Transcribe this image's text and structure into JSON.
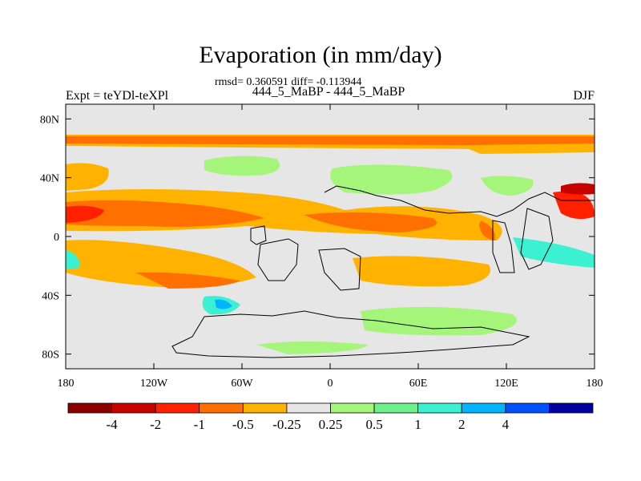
{
  "chart_data": {
    "type": "heatmap",
    "title": "Evaporation (in mm/day)",
    "subtitle": "rmsd= 0.360591 diff= -0.113944",
    "left_label": "Expt = teYDl-teXPl",
    "center_label": "444_5_MaBP - 444_5_MaBP",
    "right_label": "DJF",
    "x_range": [
      -180,
      180
    ],
    "y_range": [
      -90,
      90
    ],
    "x_ticks": [
      {
        "value": -180,
        "label": "180"
      },
      {
        "value": -120,
        "label": "120W"
      },
      {
        "value": -60,
        "label": "60W"
      },
      {
        "value": 0,
        "label": "0"
      },
      {
        "value": 60,
        "label": "60E"
      },
      {
        "value": 120,
        "label": "120E"
      },
      {
        "value": 180,
        "label": "180"
      }
    ],
    "y_ticks": [
      {
        "value": 80,
        "label": "80N"
      },
      {
        "value": 40,
        "label": "40N"
      },
      {
        "value": 0,
        "label": "0"
      },
      {
        "value": -40,
        "label": "40S"
      },
      {
        "value": -80,
        "label": "80S"
      }
    ],
    "colorbar": {
      "colors": [
        "#8b0000",
        "#c80000",
        "#ff2000",
        "#ff7000",
        "#ffb300",
        "#e6e6e6",
        "#a5f57a",
        "#6ef08c",
        "#3cf0d2",
        "#00b4ff",
        "#0050ff",
        "#0000a0"
      ],
      "levels": [
        "-4",
        "-2",
        "-1",
        "-0.5",
        "-0.25",
        "0.25",
        "0.5",
        "1",
        "2",
        "4"
      ],
      "label_positions": [
        1,
        2,
        3,
        4,
        5,
        6,
        7,
        8,
        9,
        10
      ]
    },
    "regions": [
      {
        "name": "arctic-band",
        "level": -0.5,
        "lon": [
          -180,
          180
        ],
        "lat": [
          70,
          78
        ]
      },
      {
        "name": "arctic-band-inner",
        "level": -0.25,
        "lon": [
          -180,
          180
        ],
        "lat": [
          68,
          70
        ]
      },
      {
        "name": "north-atlantic-positive",
        "level": 0.5,
        "lon": [
          -100,
          -60
        ],
        "lat": [
          45,
          55
        ]
      },
      {
        "name": "north-pacific-positive",
        "level": 0.5,
        "lon": [
          120,
          140
        ],
        "lat": [
          30,
          42
        ]
      },
      {
        "name": "north-pacific-tropics-negative",
        "level": -1,
        "lon": [
          -180,
          -140
        ],
        "lat": [
          5,
          20
        ]
      },
      {
        "name": "west-pacific-negative",
        "level": -1,
        "lon": [
          160,
          180
        ],
        "lat": [
          5,
          25
        ]
      },
      {
        "name": "indian-ocean-negative",
        "level": -0.5,
        "lon": [
          20,
          100
        ],
        "lat": [
          -10,
          20
        ]
      },
      {
        "name": "south-atlantic-negative",
        "level": -0.5,
        "lon": [
          -100,
          -40
        ],
        "lat": [
          -40,
          -20
        ]
      },
      {
        "name": "south-pacific-blue",
        "level": 2,
        "lon": [
          -80,
          -60
        ],
        "lat": [
          -50,
          -40
        ]
      },
      {
        "name": "southern-ocean-positive",
        "level": 0.5,
        "lon": [
          20,
          120
        ],
        "lat": [
          -65,
          -50
        ]
      },
      {
        "name": "west-australia-positive",
        "level": 1,
        "lon": [
          140,
          180
        ],
        "lat": [
          -30,
          -10
        ]
      }
    ]
  }
}
